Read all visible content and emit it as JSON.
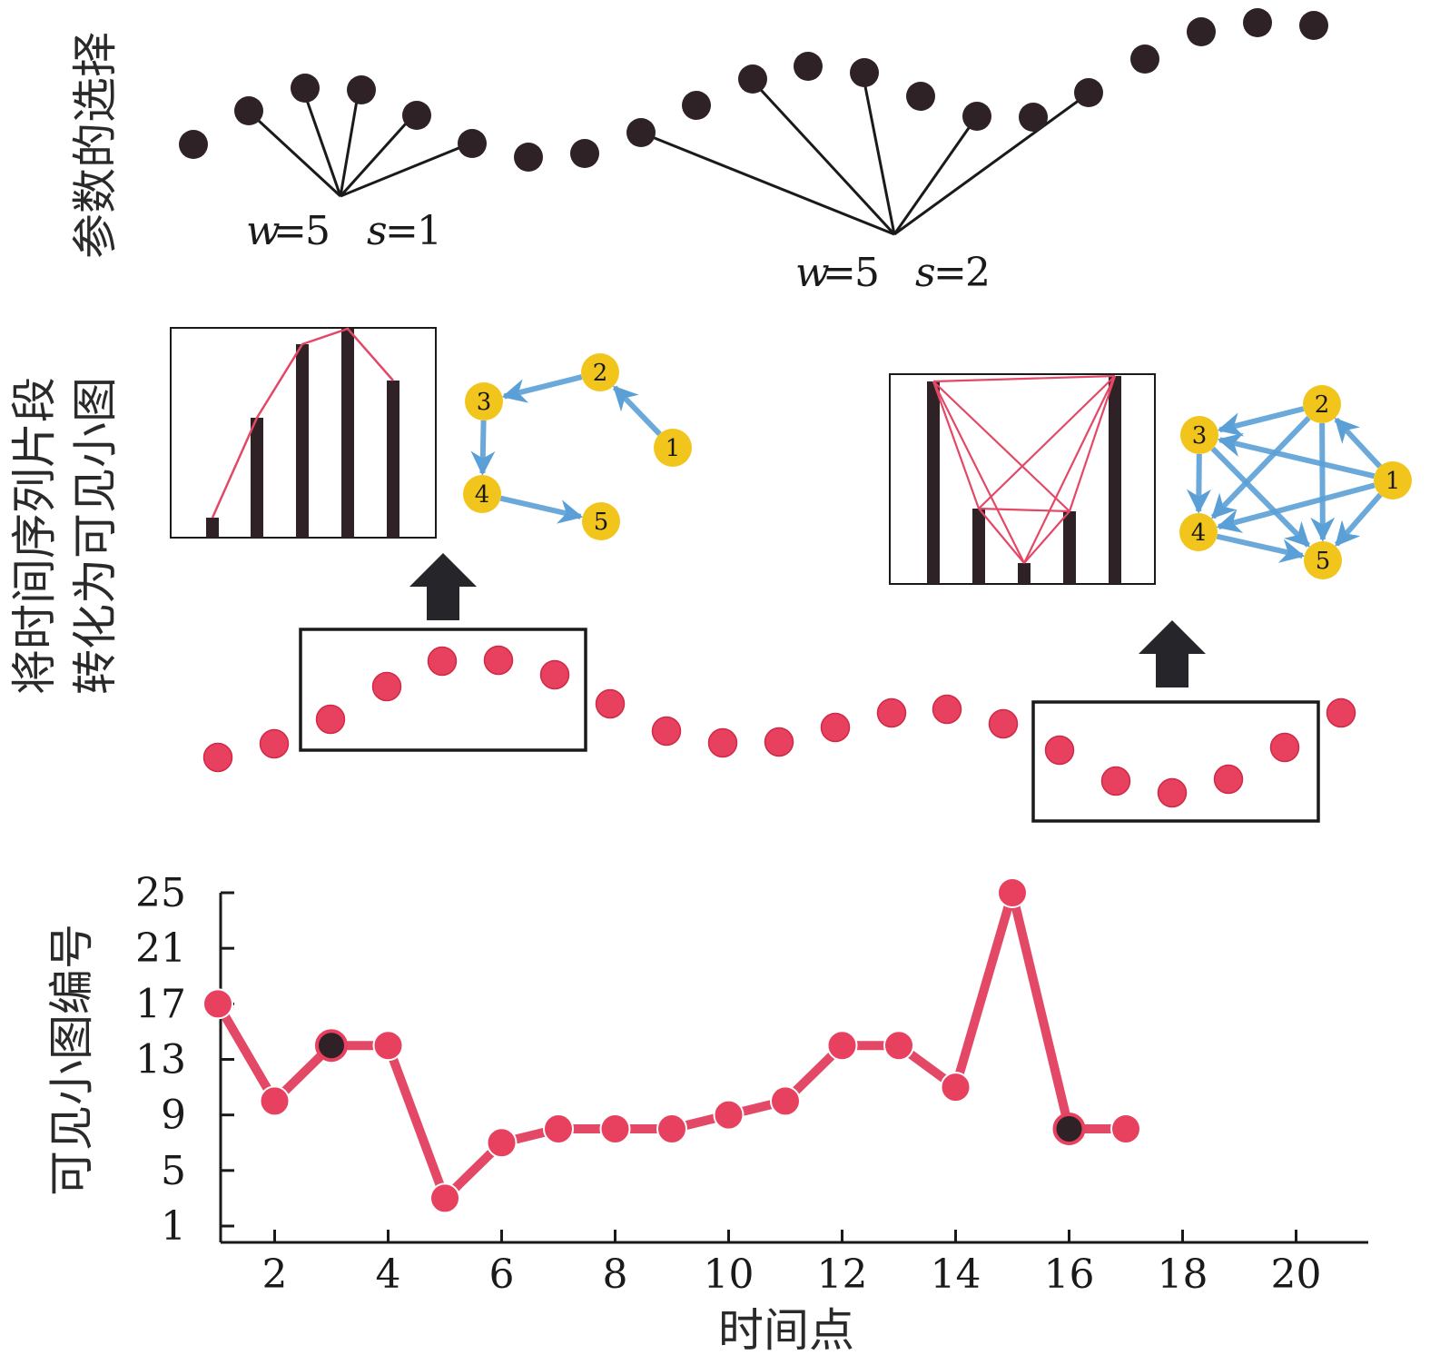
{
  "row_labels": {
    "param_selection": "参数的选择",
    "convert_line1": "将时间序列片段",
    "convert_line2": "转化为可见小图"
  },
  "params": {
    "w_label": "w",
    "s_label": "s",
    "first": {
      "w": "5",
      "s": "1"
    },
    "second": {
      "w": "5",
      "s": "2"
    }
  },
  "graph_nodes": [
    "1",
    "2",
    "3",
    "4",
    "5"
  ],
  "colors": {
    "dark_point": "#2e2226",
    "red_point": "#e8415f",
    "red_line": "#e34866",
    "node_fill": "#f2c51c",
    "edge_blue": "#5aa0d6"
  },
  "chart_data": {
    "type": "line",
    "ylabel": "可见小图编号",
    "xlabel": "时间点",
    "x_ticks": [
      2,
      4,
      6,
      8,
      10,
      12,
      14,
      16,
      18,
      20
    ],
    "y_ticks": [
      1,
      5,
      9,
      13,
      17,
      21,
      25
    ],
    "xlim": [
      1,
      21
    ],
    "ylim": [
      1,
      25
    ],
    "x": [
      1,
      2,
      3,
      4,
      5,
      6,
      7,
      8,
      9,
      10,
      11,
      12,
      13,
      14,
      15,
      16,
      17
    ],
    "values": [
      17,
      10,
      14,
      14,
      3,
      7,
      8,
      8,
      8,
      9,
      10,
      14,
      14,
      11,
      25,
      8,
      8
    ],
    "highlight_x": [
      3,
      16
    ]
  }
}
